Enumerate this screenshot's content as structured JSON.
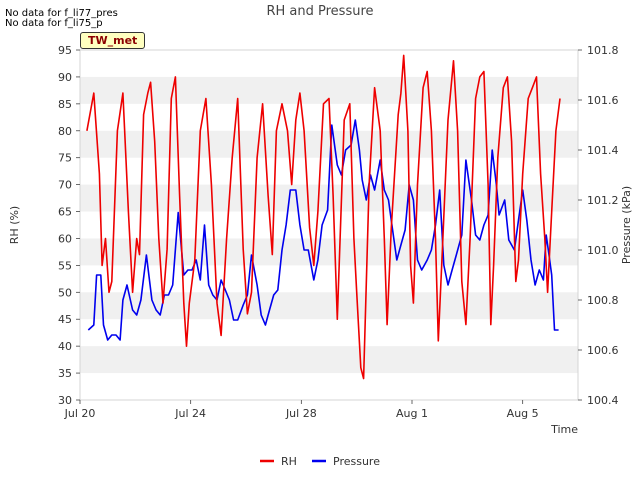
{
  "header": {
    "title": "RH and Pressure",
    "notes": [
      "No data for f_li77_pres",
      "No data for f_li75_p"
    ],
    "badge": "TW_met"
  },
  "chart_data": {
    "type": "line",
    "title": "RH and Pressure",
    "xlabel": "Time",
    "ylabel": "RH (%)",
    "y2label": "Pressure (kPa)",
    "xlim": [
      "2023-07-20",
      "2023-08-07"
    ],
    "ylim": [
      30,
      95
    ],
    "y2lim": [
      100.4,
      101.8
    ],
    "xticks": [
      {
        "label": "Jul 20",
        "day": 0
      },
      {
        "label": "Jul 24",
        "day": 4
      },
      {
        "label": "Jul 28",
        "day": 8
      },
      {
        "label": "Aug 1",
        "day": 12
      },
      {
        "label": "Aug 5",
        "day": 16
      }
    ],
    "yticks": [
      30,
      35,
      40,
      45,
      50,
      55,
      60,
      65,
      70,
      75,
      80,
      85,
      90,
      95
    ],
    "y2ticks": [
      "100.4",
      "100.6",
      "100.8",
      "101.0",
      "101.2",
      "101.4",
      "101.6",
      "101.8"
    ],
    "grid": "horizontal bands",
    "legend": "bottom-center",
    "series": [
      {
        "name": "RH",
        "axis": "left",
        "color": "#ee0000",
        "points": [
          [
            0.25,
            80
          ],
          [
            0.5,
            87
          ],
          [
            0.7,
            72
          ],
          [
            0.8,
            55
          ],
          [
            0.92,
            60
          ],
          [
            1.05,
            50
          ],
          [
            1.15,
            52
          ],
          [
            1.35,
            80
          ],
          [
            1.55,
            87
          ],
          [
            1.75,
            65
          ],
          [
            1.9,
            50
          ],
          [
            2.05,
            60
          ],
          [
            2.15,
            57
          ],
          [
            2.3,
            83
          ],
          [
            2.45,
            87
          ],
          [
            2.55,
            89
          ],
          [
            2.7,
            78
          ],
          [
            2.85,
            60
          ],
          [
            3.0,
            48
          ],
          [
            3.15,
            58
          ],
          [
            3.3,
            86
          ],
          [
            3.45,
            90
          ],
          [
            3.6,
            68
          ],
          [
            3.75,
            48
          ],
          [
            3.85,
            40
          ],
          [
            3.95,
            48
          ],
          [
            4.15,
            56
          ],
          [
            4.35,
            80
          ],
          [
            4.55,
            86
          ],
          [
            4.75,
            70
          ],
          [
            4.95,
            48
          ],
          [
            5.1,
            42
          ],
          [
            5.3,
            60
          ],
          [
            5.5,
            75
          ],
          [
            5.7,
            86
          ],
          [
            5.9,
            58
          ],
          [
            6.05,
            46
          ],
          [
            6.2,
            50
          ],
          [
            6.4,
            75
          ],
          [
            6.6,
            85
          ],
          [
            6.8,
            68
          ],
          [
            6.95,
            57
          ],
          [
            7.1,
            80
          ],
          [
            7.3,
            85
          ],
          [
            7.5,
            80
          ],
          [
            7.65,
            70
          ],
          [
            7.8,
            82
          ],
          [
            7.95,
            87
          ],
          [
            8.1,
            80
          ],
          [
            8.3,
            62
          ],
          [
            8.45,
            55
          ],
          [
            8.6,
            65
          ],
          [
            8.8,
            85
          ],
          [
            9.0,
            86
          ],
          [
            9.15,
            68
          ],
          [
            9.3,
            45
          ],
          [
            9.4,
            60
          ],
          [
            9.55,
            82
          ],
          [
            9.75,
            85
          ],
          [
            9.9,
            60
          ],
          [
            10.0,
            50
          ],
          [
            10.15,
            36
          ],
          [
            10.25,
            34
          ],
          [
            10.45,
            70
          ],
          [
            10.65,
            88
          ],
          [
            10.85,
            80
          ],
          [
            11.0,
            60
          ],
          [
            11.1,
            44
          ],
          [
            11.25,
            62
          ],
          [
            11.5,
            83
          ],
          [
            11.6,
            87
          ],
          [
            11.7,
            94
          ],
          [
            11.85,
            80
          ],
          [
            11.95,
            55
          ],
          [
            12.05,
            48
          ],
          [
            12.2,
            70
          ],
          [
            12.4,
            88
          ],
          [
            12.55,
            91
          ],
          [
            12.7,
            80
          ],
          [
            12.85,
            60
          ],
          [
            12.95,
            41
          ],
          [
            13.1,
            58
          ],
          [
            13.3,
            82
          ],
          [
            13.5,
            93
          ],
          [
            13.65,
            80
          ],
          [
            13.8,
            52
          ],
          [
            13.95,
            44
          ],
          [
            14.1,
            60
          ],
          [
            14.3,
            86
          ],
          [
            14.45,
            90
          ],
          [
            14.6,
            91
          ],
          [
            14.75,
            70
          ],
          [
            14.85,
            44
          ],
          [
            14.95,
            55
          ],
          [
            15.1,
            75
          ],
          [
            15.3,
            88
          ],
          [
            15.45,
            90
          ],
          [
            15.6,
            78
          ],
          [
            15.75,
            52
          ],
          [
            15.85,
            56
          ],
          [
            16.0,
            72
          ],
          [
            16.2,
            86
          ],
          [
            16.35,
            88
          ],
          [
            16.5,
            90
          ],
          [
            16.65,
            72
          ],
          [
            16.8,
            60
          ],
          [
            16.9,
            50
          ],
          [
            17.05,
            65
          ],
          [
            17.2,
            80
          ],
          [
            17.35,
            86
          ]
        ]
      },
      {
        "name": "Pressure",
        "axis": "right",
        "color": "#0000ee",
        "points": [
          [
            0.3,
            100.68
          ],
          [
            0.5,
            100.7
          ],
          [
            0.6,
            100.9
          ],
          [
            0.75,
            100.9
          ],
          [
            0.85,
            100.7
          ],
          [
            1.0,
            100.64
          ],
          [
            1.15,
            100.66
          ],
          [
            1.3,
            100.66
          ],
          [
            1.45,
            100.64
          ],
          [
            1.55,
            100.8
          ],
          [
            1.7,
            100.86
          ],
          [
            1.9,
            100.76
          ],
          [
            2.05,
            100.74
          ],
          [
            2.2,
            100.8
          ],
          [
            2.4,
            100.98
          ],
          [
            2.6,
            100.8
          ],
          [
            2.75,
            100.76
          ],
          [
            2.9,
            100.74
          ],
          [
            3.05,
            100.82
          ],
          [
            3.2,
            100.82
          ],
          [
            3.35,
            100.86
          ],
          [
            3.55,
            101.15
          ],
          [
            3.75,
            100.9
          ],
          [
            3.9,
            100.92
          ],
          [
            4.05,
            100.92
          ],
          [
            4.2,
            100.96
          ],
          [
            4.35,
            100.88
          ],
          [
            4.5,
            101.1
          ],
          [
            4.65,
            100.86
          ],
          [
            4.8,
            100.82
          ],
          [
            4.95,
            100.8
          ],
          [
            5.1,
            100.88
          ],
          [
            5.25,
            100.84
          ],
          [
            5.4,
            100.8
          ],
          [
            5.55,
            100.72
          ],
          [
            5.7,
            100.72
          ],
          [
            5.9,
            100.78
          ],
          [
            6.05,
            100.82
          ],
          [
            6.2,
            100.98
          ],
          [
            6.4,
            100.86
          ],
          [
            6.55,
            100.74
          ],
          [
            6.7,
            100.7
          ],
          [
            6.85,
            100.76
          ],
          [
            7.0,
            100.82
          ],
          [
            7.15,
            100.84
          ],
          [
            7.3,
            101.0
          ],
          [
            7.45,
            101.1
          ],
          [
            7.6,
            101.24
          ],
          [
            7.8,
            101.24
          ],
          [
            7.95,
            101.1
          ],
          [
            8.1,
            101.0
          ],
          [
            8.25,
            101.0
          ],
          [
            8.45,
            100.88
          ],
          [
            8.6,
            100.96
          ],
          [
            8.75,
            101.1
          ],
          [
            8.95,
            101.16
          ],
          [
            9.1,
            101.5
          ],
          [
            9.3,
            101.34
          ],
          [
            9.45,
            101.3
          ],
          [
            9.6,
            101.4
          ],
          [
            9.8,
            101.42
          ],
          [
            9.95,
            101.52
          ],
          [
            10.1,
            101.4
          ],
          [
            10.2,
            101.28
          ],
          [
            10.35,
            101.2
          ],
          [
            10.5,
            101.3
          ],
          [
            10.65,
            101.24
          ],
          [
            10.85,
            101.36
          ],
          [
            11.0,
            101.24
          ],
          [
            11.15,
            101.2
          ],
          [
            11.3,
            101.08
          ],
          [
            11.45,
            100.96
          ],
          [
            11.6,
            101.02
          ],
          [
            11.75,
            101.08
          ],
          [
            11.9,
            101.26
          ],
          [
            12.05,
            101.2
          ],
          [
            12.2,
            100.96
          ],
          [
            12.35,
            100.92
          ],
          [
            12.55,
            100.96
          ],
          [
            12.7,
            101.0
          ],
          [
            12.85,
            101.1
          ],
          [
            13.0,
            101.24
          ],
          [
            13.15,
            100.94
          ],
          [
            13.3,
            100.86
          ],
          [
            13.45,
            100.92
          ],
          [
            13.6,
            100.98
          ],
          [
            13.8,
            101.06
          ],
          [
            13.95,
            101.36
          ],
          [
            14.15,
            101.2
          ],
          [
            14.3,
            101.06
          ],
          [
            14.45,
            101.04
          ],
          [
            14.6,
            101.1
          ],
          [
            14.75,
            101.14
          ],
          [
            14.9,
            101.4
          ],
          [
            15.05,
            101.26
          ],
          [
            15.15,
            101.14
          ],
          [
            15.35,
            101.2
          ],
          [
            15.5,
            101.04
          ],
          [
            15.7,
            101.0
          ],
          [
            15.85,
            101.12
          ],
          [
            16.0,
            101.24
          ],
          [
            16.15,
            101.12
          ],
          [
            16.3,
            100.96
          ],
          [
            16.45,
            100.86
          ],
          [
            16.6,
            100.92
          ],
          [
            16.75,
            100.88
          ],
          [
            16.85,
            101.06
          ],
          [
            16.95,
            100.98
          ],
          [
            17.05,
            100.9
          ],
          [
            17.15,
            100.68
          ],
          [
            17.3,
            100.68
          ]
        ]
      }
    ]
  }
}
